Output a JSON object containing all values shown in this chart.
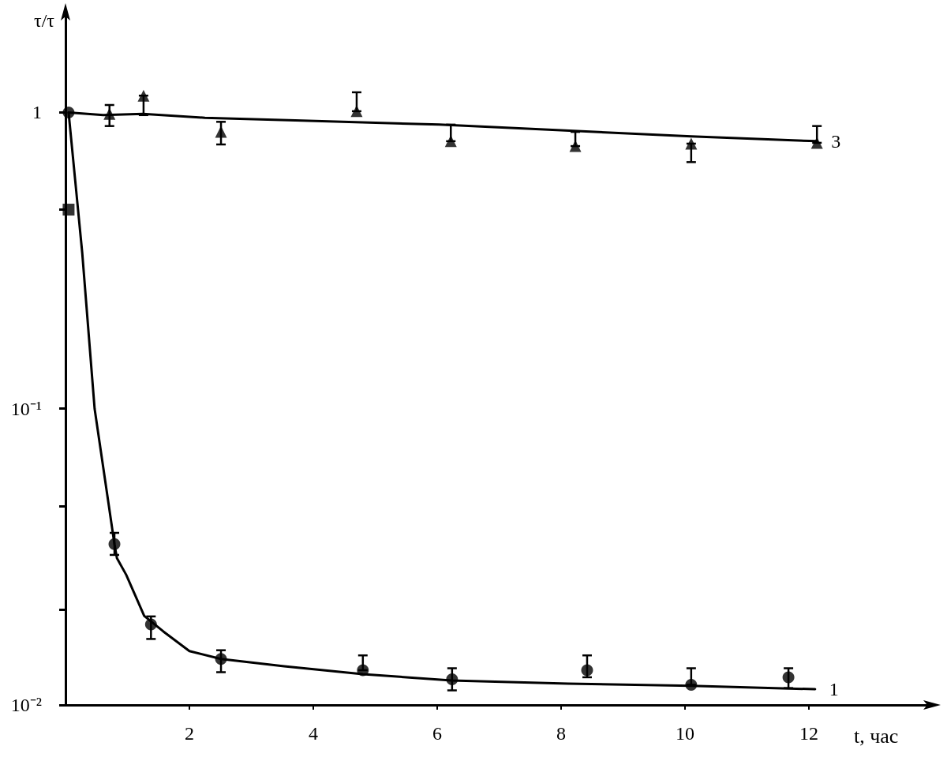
{
  "chart_data": {
    "type": "scatter",
    "xlabel": "t, час",
    "ylabel": "τ/τ",
    "log": "y",
    "xlim": [
      0,
      14
    ],
    "xticks": [
      2,
      4,
      6,
      8,
      10,
      12
    ],
    "ylim": [
      0.01,
      2.2
    ],
    "yticks": [
      {
        "value": 0.01,
        "label": "10⁻²"
      },
      {
        "value": 0.021,
        "label": null
      },
      {
        "value": 0.047,
        "label": null
      },
      {
        "value": 0.1,
        "label": "10⁻¹"
      },
      {
        "value": 0.47,
        "label": null
      },
      1
    ],
    "series": [
      {
        "name": "1",
        "type": "line",
        "marker": "none",
        "color": "#000000",
        "x": [
          0.05,
          0.27,
          0.47,
          0.7,
          0.79,
          0.83,
          0.98,
          1.27,
          1.58,
          2.0,
          2.51,
          3.53,
          4.8,
          6.23,
          8.11,
          10.1,
          12.1
        ],
        "values": [
          1.0,
          0.336,
          0.1,
          0.047,
          0.0349,
          0.0313,
          0.0275,
          0.02,
          0.0177,
          0.0152,
          0.0143,
          0.0135,
          0.0127,
          0.0121,
          0.0118,
          0.0116,
          0.0113
        ]
      },
      {
        "marker": "circle",
        "color": "#000000",
        "x": [
          0.05,
          0.79,
          1.38,
          2.51,
          4.8,
          6.24,
          8.42,
          10.1,
          11.67
        ],
        "values": [
          1.0,
          0.0349,
          0.0187,
          0.0143,
          0.0131,
          0.0122,
          0.0131,
          0.0117,
          0.0124
        ],
        "errors": [
          null,
          [
            0.0321,
            0.0381
          ],
          [
            0.0167,
            0.0199
          ],
          [
            0.0129,
            0.0153
          ],
          [
            0.0131,
            0.0147
          ],
          [
            0.0112,
            0.0133
          ],
          [
            0.0124,
            0.0147
          ],
          [
            0.0117,
            0.0133
          ],
          [
            0.0114,
            0.0133
          ]
        ]
      },
      {
        "name": "3",
        "type": "line",
        "marker": "none",
        "color": "#000000",
        "x": [
          0.05,
          0.61,
          1.25,
          2.25,
          3.71,
          6.03,
          10.1,
          12.13
        ],
        "values": [
          1.0,
          0.98,
          0.99,
          0.96,
          0.94,
          0.91,
          0.83,
          0.8
        ]
      },
      {
        "marker": "triangle",
        "color": "#000000",
        "x": [
          0.71,
          1.26,
          2.51,
          4.7,
          6.22,
          8.23,
          10.1,
          12.13
        ],
        "values": [
          0.99,
          1.14,
          0.86,
          1.01,
          0.8,
          0.77,
          0.785,
          0.79
        ],
        "errors": [
          [
            0.9,
            1.06
          ],
          [
            0.98,
            1.14
          ],
          [
            0.78,
            0.93
          ],
          [
            1.01,
            1.17
          ],
          [
            0.8,
            0.91
          ],
          [
            0.77,
            0.86
          ],
          [
            0.68,
            0.785
          ],
          [
            0.79,
            0.9
          ]
        ]
      },
      {
        "marker": "square",
        "color": "#000000",
        "x": [
          0.05
        ],
        "values": [
          0.47
        ]
      }
    ]
  }
}
